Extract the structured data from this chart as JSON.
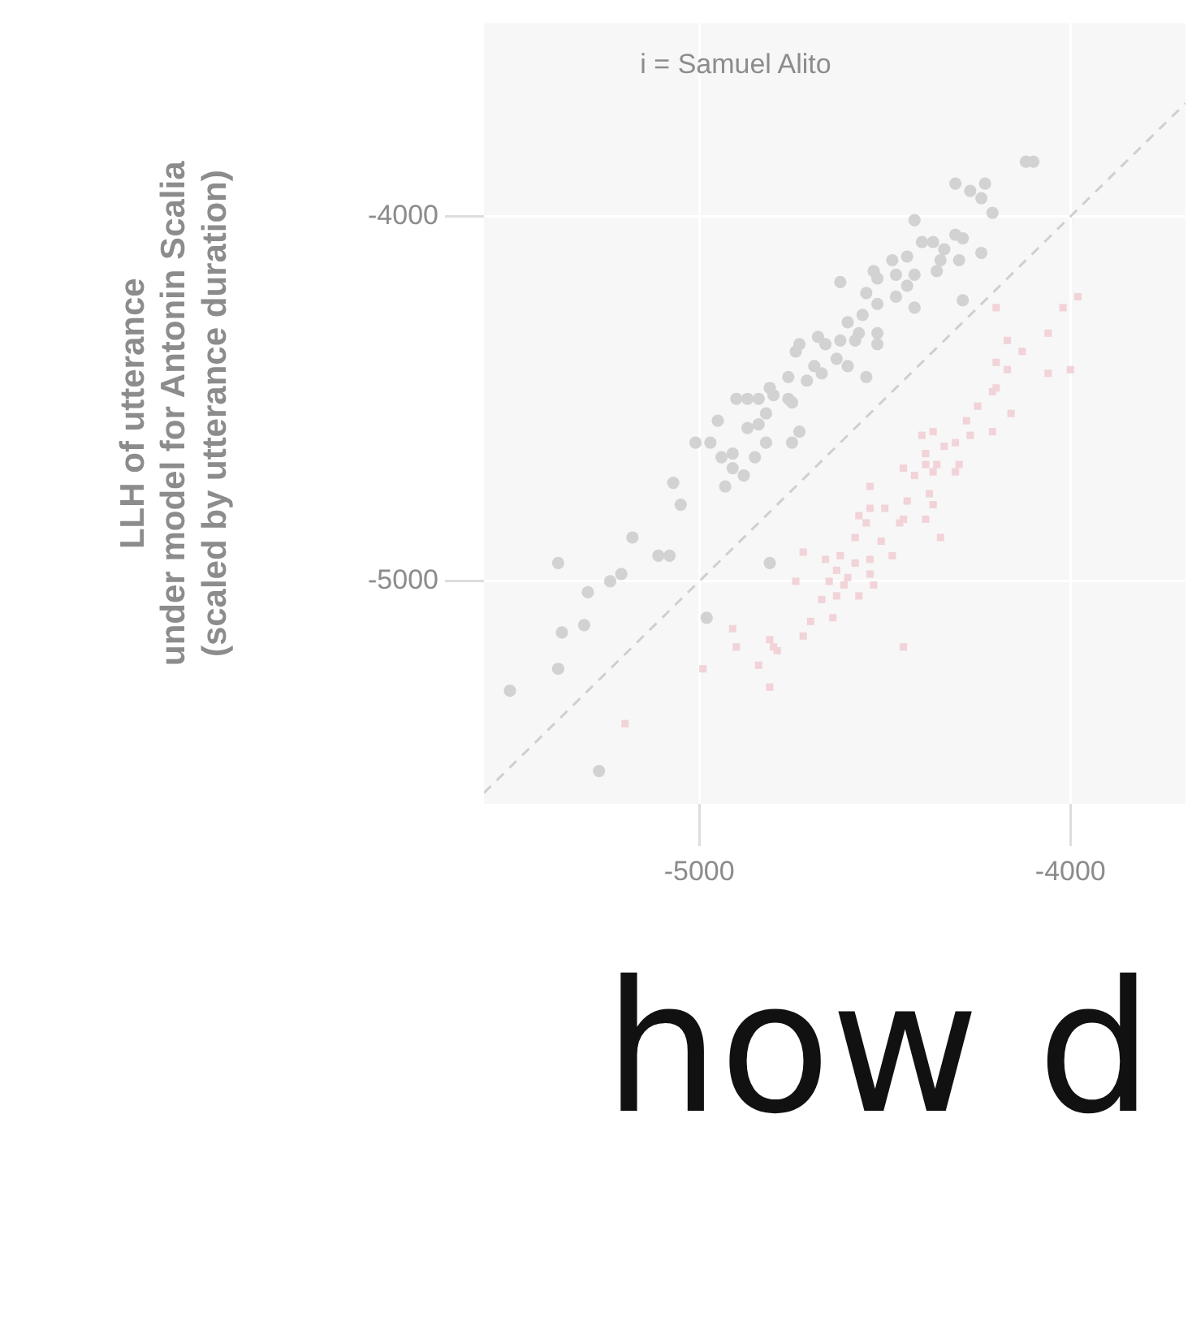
{
  "chart_data": {
    "type": "scatter",
    "title": "i = Samuel Alito",
    "ylabel": "LLH of utterance\nunder model for Antonin Scalia\n(scaled by utterance duration)",
    "annotations": [
      "how d"
    ],
    "xlim": [
      -5580,
      -3690
    ],
    "ylim": [
      -5610,
      -3470
    ],
    "xticks": [
      -5000,
      -4000
    ],
    "yticks": [
      -5000,
      -4000
    ],
    "grid": true,
    "legend": false,
    "series": [
      {
        "type": "line",
        "color": "#cfcfcf",
        "line_style": "dashed",
        "marker": "none",
        "x": [
          -5580,
          -3690
        ],
        "values": [
          -5580,
          -3690
        ]
      },
      {
        "type": "scatter",
        "color": "#d2d2d2",
        "marker": "circle",
        "x": [
          -4120,
          -4100,
          -4310,
          -4270,
          -4230,
          -4240,
          -4210,
          -4420,
          -4400,
          -4370,
          -4340,
          -4310,
          -4290,
          -4300,
          -4240,
          -4350,
          -4360,
          -4440,
          -4480,
          -4530,
          -4520,
          -4470,
          -4420,
          -4440,
          -4470,
          -4550,
          -4520,
          -4620,
          -4420,
          -4290,
          -4560,
          -4600,
          -4570,
          -4520,
          -4520,
          -4580,
          -4620,
          -4660,
          -4680,
          -4730,
          -4740,
          -4630,
          -4600,
          -4690,
          -4670,
          -4710,
          -4550,
          -4760,
          -4810,
          -4800,
          -4900,
          -4870,
          -4840,
          -4760,
          -4750,
          -4820,
          -4840,
          -4870,
          -4950,
          -4730,
          -4750,
          -4820,
          -5010,
          -4970,
          -4940,
          -4910,
          -4850,
          -4910,
          -4880,
          -4930,
          -5070,
          -5050,
          -5180,
          -5110,
          -5080,
          -5380,
          -5210,
          -5240,
          -5300,
          -4810,
          -4980,
          -5310,
          -5370,
          -5380,
          -5510,
          -5270
        ],
        "values": [
          -3850,
          -3850,
          -3910,
          -3930,
          -3910,
          -3950,
          -3990,
          -4010,
          -4070,
          -4070,
          -4090,
          -4050,
          -4060,
          -4120,
          -4100,
          -4120,
          -4150,
          -4110,
          -4120,
          -4150,
          -4170,
          -4160,
          -4160,
          -4190,
          -4220,
          -4210,
          -4240,
          -4180,
          -4250,
          -4230,
          -4270,
          -4290,
          -4320,
          -4320,
          -4350,
          -4340,
          -4340,
          -4350,
          -4330,
          -4350,
          -4370,
          -4390,
          -4410,
          -4410,
          -4430,
          -4450,
          -4440,
          -4440,
          -4470,
          -4490,
          -4500,
          -4500,
          -4500,
          -4500,
          -4510,
          -4540,
          -4570,
          -4580,
          -4560,
          -4590,
          -4620,
          -4620,
          -4620,
          -4620,
          -4660,
          -4650,
          -4660,
          -4690,
          -4710,
          -4740,
          -4730,
          -4790,
          -4880,
          -4930,
          -4930,
          -4950,
          -4980,
          -5000,
          -5030,
          -4950,
          -5100,
          -5120,
          -5140,
          -5240,
          -5300,
          -5520
        ]
      },
      {
        "type": "scatter",
        "color": "#f1d3d8",
        "marker": "square",
        "x": [
          -3980,
          -4020,
          -4200,
          -4060,
          -4170,
          -4130,
          -4200,
          -4170,
          -4060,
          -4000,
          -4200,
          -4210,
          -4250,
          -4160,
          -4280,
          -4210,
          -4270,
          -4310,
          -4340,
          -4370,
          -4400,
          -4390,
          -4390,
          -4360,
          -4300,
          -4450,
          -4420,
          -4370,
          -4310,
          -4540,
          -4380,
          -4440,
          -4370,
          -4500,
          -4540,
          -4570,
          -4450,
          -4390,
          -4550,
          -4460,
          -4580,
          -4510,
          -4350,
          -4720,
          -4620,
          -4660,
          -4580,
          -4540,
          -4480,
          -4630,
          -4600,
          -4540,
          -4740,
          -4650,
          -4610,
          -4530,
          -4670,
          -4630,
          -4570,
          -4640,
          -4700,
          -4910,
          -4900,
          -4810,
          -4800,
          -4790,
          -4720,
          -4840,
          -4810,
          -4990,
          -4450,
          -5200
        ],
        "values": [
          -4220,
          -4250,
          -4250,
          -4320,
          -4340,
          -4370,
          -4400,
          -4420,
          -4430,
          -4420,
          -4470,
          -4480,
          -4520,
          -4540,
          -4560,
          -4590,
          -4600,
          -4620,
          -4630,
          -4590,
          -4600,
          -4650,
          -4680,
          -4680,
          -4680,
          -4690,
          -4710,
          -4700,
          -4700,
          -4740,
          -4760,
          -4780,
          -4790,
          -4800,
          -4800,
          -4820,
          -4830,
          -4830,
          -4840,
          -4840,
          -4880,
          -4890,
          -4880,
          -4920,
          -4930,
          -4940,
          -4950,
          -4940,
          -4930,
          -4970,
          -4990,
          -4980,
          -5000,
          -5000,
          -5010,
          -5010,
          -5050,
          -5040,
          -5040,
          -5100,
          -5110,
          -5130,
          -5180,
          -5160,
          -5180,
          -5190,
          -5150,
          -5230,
          -5290,
          -5240,
          -5180,
          -5390
        ]
      }
    ]
  }
}
